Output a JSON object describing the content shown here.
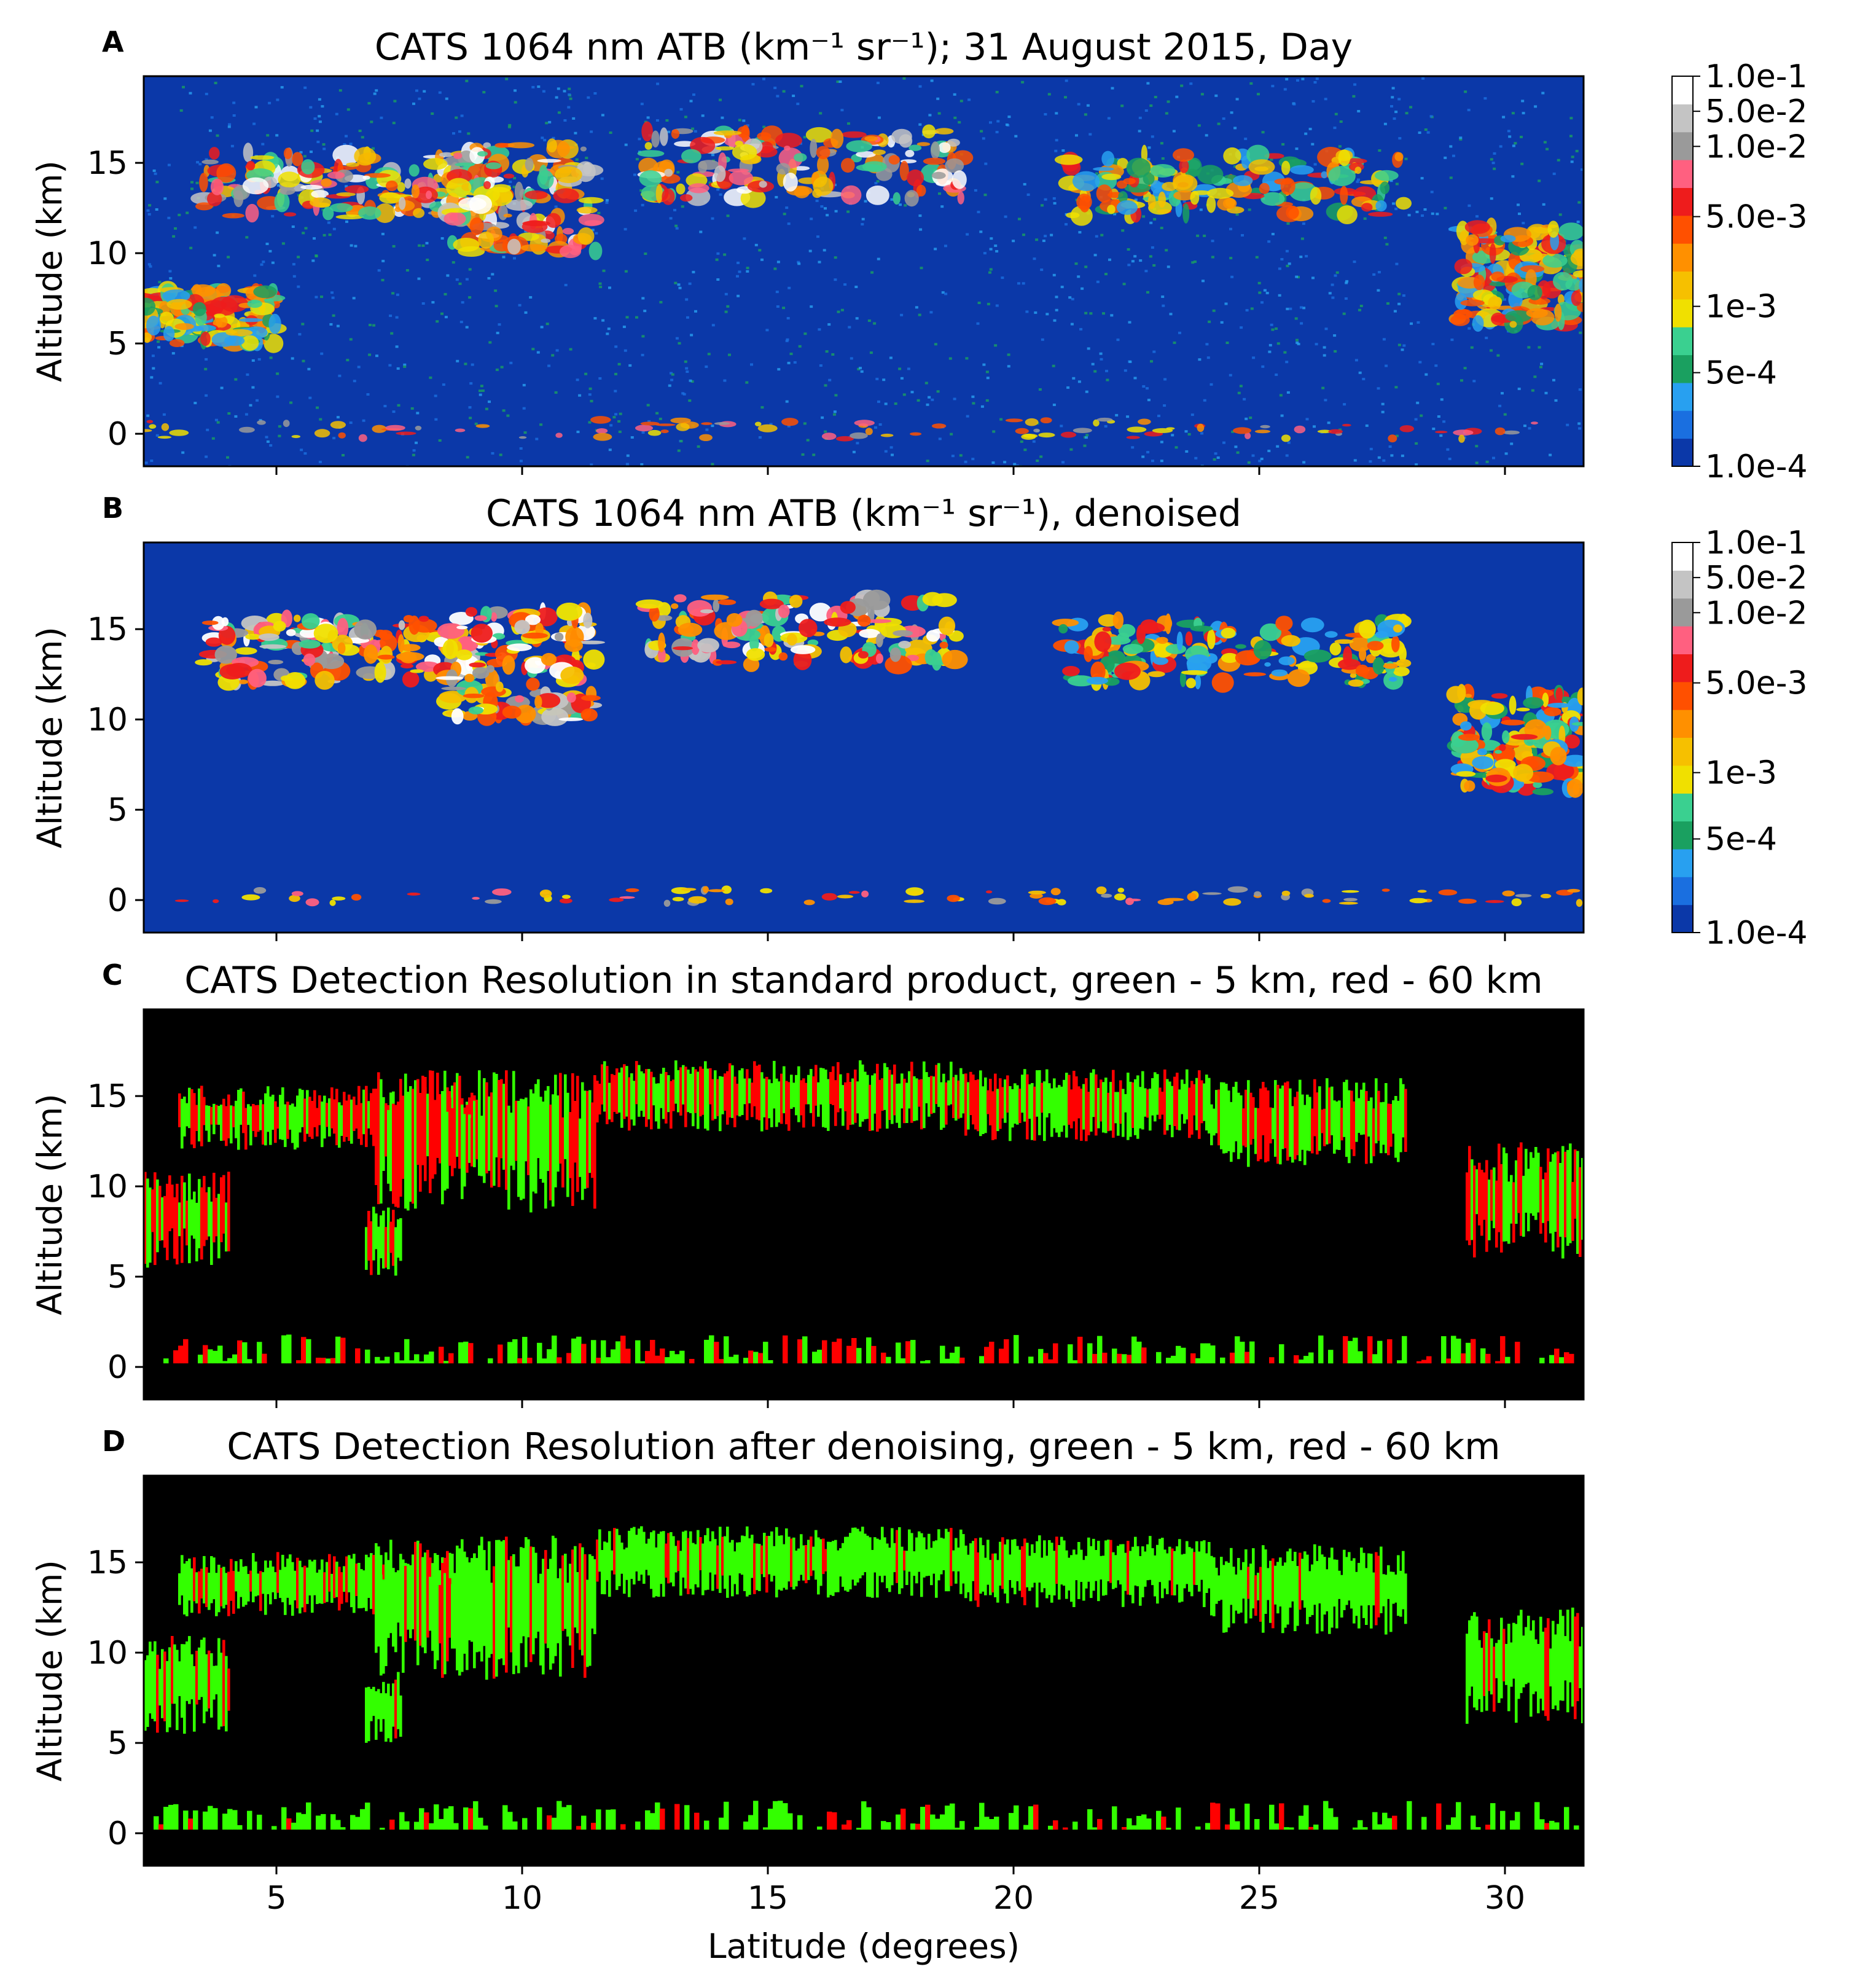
{
  "chart_data": [
    {
      "type": "heatmap",
      "panel": "A",
      "title": "CATS 1064 nm ATB (km⁻¹ sr⁻¹); 31 August 2015, Day",
      "ylabel": "Altitude (km)",
      "xlabel": "",
      "xlim": [
        2.3,
        31.6
      ],
      "ylim": [
        -1.8,
        19.8
      ],
      "yticks": [
        0,
        5,
        10,
        15
      ],
      "xticks": [
        5,
        10,
        15,
        20,
        25,
        30
      ],
      "show_xtick_labels": false,
      "background_color": "#0b38a8",
      "colorbar": {
        "labels": [
          "1.0e-1",
          "5.0e-2",
          "1.0e-2",
          "5.0e-3",
          "1e-3",
          "5e-4",
          "1.0e-4"
        ],
        "scale": "log",
        "range": [
          0.0001,
          0.1
        ]
      },
      "features": [
        {
          "lat": [
            3.5,
            9.0
          ],
          "alt": [
            12.0,
            15.6
          ],
          "level": "strong"
        },
        {
          "lat": [
            8.5,
            11.5
          ],
          "alt": [
            10.0,
            16.0
          ],
          "level": "strong"
        },
        {
          "lat": [
            12.5,
            19.0
          ],
          "alt": [
            13.0,
            16.8
          ],
          "level": "strong"
        },
        {
          "lat": [
            21.0,
            28.0
          ],
          "alt": [
            12.0,
            15.5
          ],
          "level": "medium"
        },
        {
          "lat": [
            29.0,
            31.6
          ],
          "alt": [
            6.0,
            11.5
          ],
          "level": "medium"
        },
        {
          "lat": [
            2.3,
            5.0
          ],
          "alt": [
            5.0,
            8.0
          ],
          "level": "medium"
        },
        {
          "lat": [
            2.3,
            31.6
          ],
          "alt": [
            -0.3,
            0.8
          ],
          "level": "surface"
        }
      ]
    },
    {
      "type": "heatmap",
      "panel": "B",
      "title": "CATS 1064 nm ATB (km⁻¹ sr⁻¹), denoised",
      "ylabel": "Altitude (km)",
      "xlabel": "",
      "xlim": [
        2.3,
        31.6
      ],
      "ylim": [
        -1.8,
        19.8
      ],
      "yticks": [
        0,
        5,
        10,
        15
      ],
      "xticks": [
        5,
        10,
        15,
        20,
        25,
        30
      ],
      "show_xtick_labels": false,
      "background_color": "#0b38a8",
      "colorbar": {
        "labels": [
          "1.0e-1",
          "5.0e-2",
          "1.0e-2",
          "5.0e-3",
          "1e-3",
          "5e-4",
          "1.0e-4"
        ],
        "scale": "log",
        "range": [
          0.0001,
          0.1
        ]
      },
      "features": [
        {
          "lat": [
            3.5,
            9.0
          ],
          "alt": [
            12.0,
            15.6
          ],
          "level": "strong"
        },
        {
          "lat": [
            8.5,
            11.5
          ],
          "alt": [
            10.0,
            16.0
          ],
          "level": "strong"
        },
        {
          "lat": [
            12.5,
            19.0
          ],
          "alt": [
            13.0,
            16.8
          ],
          "level": "strong"
        },
        {
          "lat": [
            21.0,
            28.0
          ],
          "alt": [
            12.0,
            15.5
          ],
          "level": "medium"
        },
        {
          "lat": [
            29.0,
            31.6
          ],
          "alt": [
            6.0,
            11.5
          ],
          "level": "medium"
        },
        {
          "lat": [
            2.3,
            31.6
          ],
          "alt": [
            -0.2,
            0.6
          ],
          "level": "surface"
        }
      ]
    },
    {
      "type": "heatmap",
      "panel": "C",
      "title": "CATS Detection Resolution in standard product, green - 5 km, red - 60 km",
      "ylabel": "Altitude (km)",
      "xlabel": "",
      "xlim": [
        2.3,
        31.6
      ],
      "ylim": [
        -1.8,
        19.8
      ],
      "yticks": [
        0,
        5,
        10,
        15
      ],
      "xticks": [
        5,
        10,
        15,
        20,
        25,
        30
      ],
      "show_xtick_labels": false,
      "background_color": "#000000",
      "classes": {
        "5 km": "#33ff00",
        "60 km": "#ff0000"
      },
      "red_fraction": 0.42
    },
    {
      "type": "heatmap",
      "panel": "D",
      "title": "CATS Detection Resolution after denoising, green - 5 km, red - 60 km",
      "ylabel": "Altitude (km)",
      "xlabel": "Latitude (degrees)",
      "xlim": [
        2.3,
        31.6
      ],
      "ylim": [
        -1.8,
        19.8
      ],
      "yticks": [
        0,
        5,
        10,
        15
      ],
      "xticks": [
        5,
        10,
        15,
        20,
        25,
        30
      ],
      "show_xtick_labels": true,
      "background_color": "#000000",
      "classes": {
        "5 km": "#33ff00",
        "60 km": "#ff0000"
      },
      "red_fraction": 0.16
    }
  ],
  "colormap": [
    "#0b38a8",
    "#1a6fe0",
    "#28a0f0",
    "#1aa060",
    "#3ad090",
    "#f0e000",
    "#f6c000",
    "#ff9000",
    "#ff5000",
    "#ee1c1c",
    "#ff6080",
    "#9a9a9a",
    "#c4c4c4",
    "#ffffff"
  ]
}
